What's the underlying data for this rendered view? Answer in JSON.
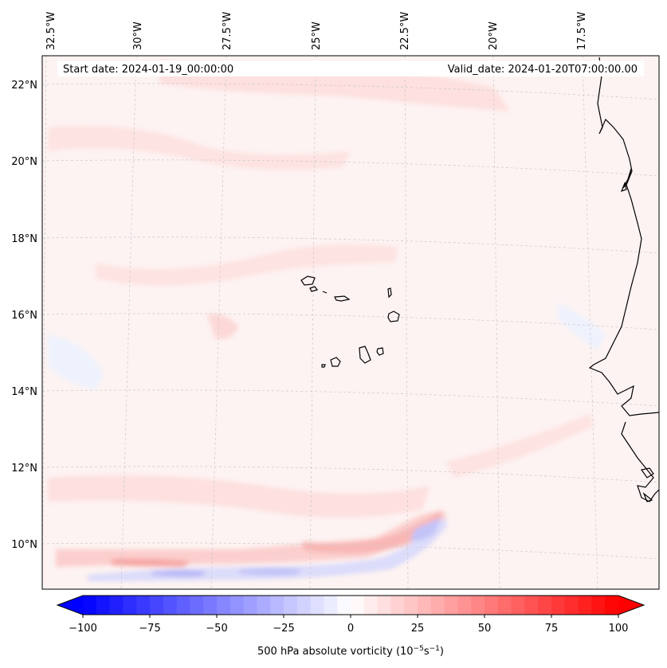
{
  "map": {
    "start_label": "Start date: 2024-01-19_00:00:00",
    "valid_label": "Valid_date: 2024-01-20T07:00:00.00",
    "lon_labels": [
      "32.5°W",
      "30°W",
      "27.5°W",
      "25°W",
      "22.5°W",
      "20°W",
      "17.5°W"
    ],
    "lat_labels": [
      "22°N",
      "20°N",
      "18°N",
      "16°N",
      "14°N",
      "12°N",
      "10°N"
    ]
  },
  "colorbar": {
    "ticks": [
      "−100",
      "−75",
      "−50",
      "−25",
      "0",
      "25",
      "50",
      "75",
      "100"
    ],
    "label": "500 hPa absolute vorticity (10",
    "label_sup1": "−5",
    "label_mid": "s",
    "label_sup2": "−1",
    "label_end": ")",
    "range": [
      -100,
      100
    ],
    "step": 5
  },
  "colors": {
    "neg_max": "#0000ff",
    "zero": "#ffffff",
    "pos_max": "#ff0000",
    "coast": "#000000",
    "grid": "#cccccc"
  }
}
